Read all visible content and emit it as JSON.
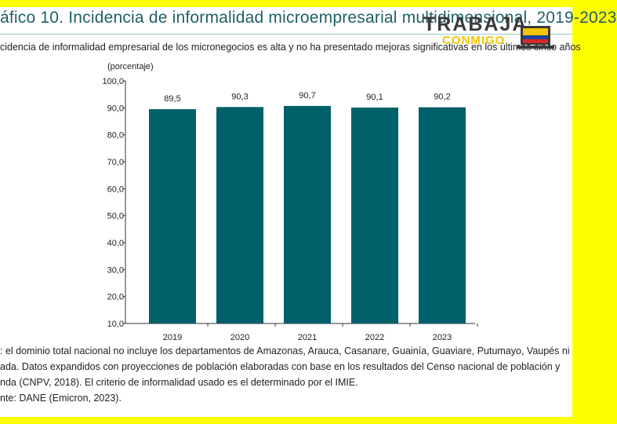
{
  "title": "áfico 10. Incidencia de informalidad microempresarial multidimensional, 2019-2023",
  "subtitle": "cidencia de informalidad empresarial de los micronegocios es alta y no ha presentado mejoras significativas en los últimos cinco años",
  "notes": [
    ": el dominio total nacional no incluye los departamentos de Amazonas, Arauca, Casanare, Guainía, Guaviare, Putumayo, Vaupés ni",
    "ada. Datos expandidos con proyecciones de población elaboradas con base en los resultados del Censo nacional de población y",
    "nda (CNPV, 2018). El criterio de informalidad usado es el determinado por el IMIE.",
    "nte: DANE (Emicron, 2023)."
  ],
  "watermark": {
    "text": "TRABAJA",
    "subtext": "CONMIGO",
    "icon": "laptop-flag-icon",
    "colors": {
      "text": "#3a3a3a",
      "sub": "#f5c400"
    }
  },
  "colors": {
    "bar": "#00606a",
    "border": "#ffff00",
    "title": "#1f5f66"
  },
  "chart_data": {
    "type": "bar",
    "categories": [
      "2019",
      "2020",
      "2021",
      "2022",
      "2023"
    ],
    "values": [
      89.5,
      90.3,
      90.7,
      90.1,
      90.2
    ],
    "value_labels": [
      "89,5",
      "90,3",
      "90,7",
      "90,1",
      "90,2"
    ],
    "ylabel": "(porcentaje)",
    "ylim": [
      10,
      100
    ],
    "yticks": [
      10,
      20,
      30,
      40,
      50,
      60,
      70,
      80,
      90,
      100
    ],
    "ytick_labels": [
      "10,0",
      "20,0",
      "30,0",
      "40,0",
      "50,0",
      "60,0",
      "70,0",
      "80,0",
      "90,0",
      "100,0"
    ],
    "grid": false,
    "legend": "none"
  }
}
